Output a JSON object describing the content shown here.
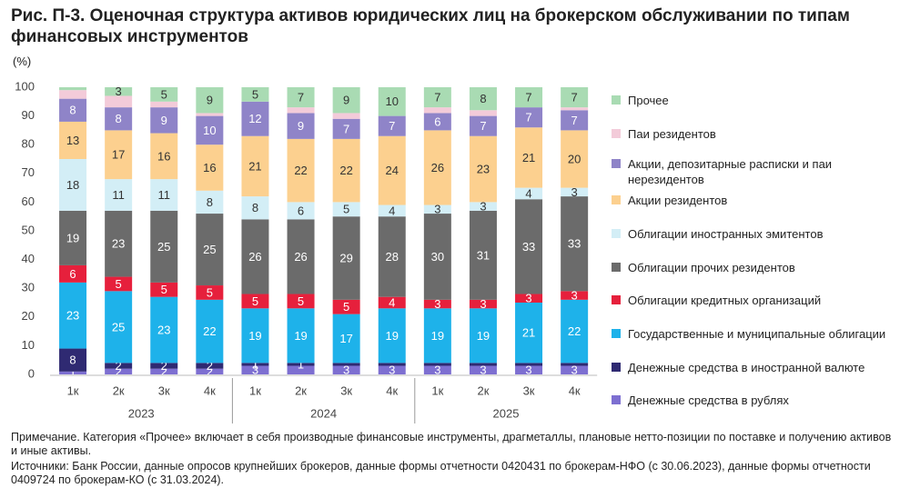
{
  "chart_data": {
    "type": "stacked_bar",
    "title": "Рис. П-3. Оценочная структура активов юридических лиц на брокерском обслуживании по типам финансовых инструментов",
    "y_label": "(%)",
    "categories": [
      "1к",
      "2к",
      "3к",
      "4к",
      "1к",
      "2к",
      "3к",
      "4к",
      "1к",
      "2к",
      "3к",
      "4к"
    ],
    "group_labels": [
      "2023",
      "2024",
      "2025"
    ],
    "ylim": [
      0,
      100
    ],
    "yticks": [
      0,
      10,
      20,
      30,
      40,
      50,
      60,
      70,
      80,
      90,
      100
    ],
    "series": [
      {
        "name": "Денежные средства в рублях",
        "color": "#7d6fd1",
        "values": [
          1,
          2,
          2,
          2,
          3,
          3,
          3,
          3,
          3,
          3,
          3,
          3
        ],
        "value_labels": [
          "1",
          "2",
          "2",
          "2",
          "3",
          null,
          "3",
          "3",
          "3",
          "3",
          "3",
          "3"
        ]
      },
      {
        "name": "Денежные средства в иностранной валюте",
        "color": "#2f2a72",
        "values": [
          8,
          2,
          2,
          2,
          1,
          1,
          1,
          1,
          1,
          1,
          1,
          1
        ],
        "value_labels": [
          "8",
          "2",
          "2",
          "2",
          "1",
          "1",
          null,
          null,
          null,
          null,
          null,
          null
        ]
      },
      {
        "name": "Государственные и муниципальные облигации",
        "color": "#1eb2ea",
        "values": [
          23,
          25,
          23,
          22,
          19,
          19,
          17,
          19,
          19,
          19,
          21,
          22
        ],
        "value_labels": [
          "23",
          "25",
          "23",
          "22",
          "19",
          "19",
          "17",
          "19",
          "19",
          "19",
          "21",
          "22"
        ]
      },
      {
        "name": "Облигации кредитных организаций",
        "color": "#e6203c",
        "values": [
          6,
          5,
          5,
          5,
          5,
          5,
          5,
          4,
          3,
          3,
          3,
          3
        ],
        "value_labels": [
          "6",
          "5",
          "5",
          "5",
          "5",
          "5",
          "5",
          "4",
          "3",
          "3",
          "3",
          "3"
        ]
      },
      {
        "name": "Облигации прочих резидентов",
        "color": "#6b6b6b",
        "values": [
          19,
          23,
          25,
          25,
          26,
          26,
          29,
          28,
          30,
          31,
          33,
          33
        ],
        "value_labels": [
          "19",
          "23",
          "25",
          "25",
          "26",
          "26",
          "29",
          "28",
          "30",
          "31",
          "33",
          "33"
        ]
      },
      {
        "name": "Облигации иностранных эмитентов",
        "color": "#d3eef6",
        "values": [
          18,
          11,
          11,
          8,
          8,
          6,
          5,
          4,
          3,
          3,
          4,
          3
        ],
        "value_labels": [
          "18",
          "11",
          "11",
          "8",
          "8",
          "6",
          "5",
          "4",
          "3",
          "3",
          "4",
          "3"
        ]
      },
      {
        "name": "Акции резидентов",
        "color": "#fcd08f",
        "values": [
          13,
          17,
          16,
          16,
          21,
          22,
          22,
          24,
          26,
          23,
          21,
          20
        ],
        "value_labels": [
          "13",
          "17",
          "16",
          "16",
          "21",
          "22",
          "22",
          "24",
          "26",
          "23",
          "21",
          "20"
        ]
      },
      {
        "name": "Акции, депозитарные расписки и паи нерезидентов",
        "color": "#8f84c8",
        "values": [
          8,
          8,
          9,
          10,
          12,
          9,
          7,
          7,
          6,
          7,
          7,
          7
        ],
        "value_labels": [
          "8",
          "8",
          "9",
          "10",
          "12",
          "9",
          "7",
          "7",
          "6",
          "7",
          "7",
          "7"
        ]
      },
      {
        "name": "Паи резидентов",
        "color": "#f3cbd9",
        "values": [
          3,
          4,
          2,
          1,
          0,
          2,
          2,
          0,
          2,
          2,
          0,
          1
        ],
        "value_labels": [
          null,
          null,
          null,
          null,
          null,
          null,
          null,
          null,
          null,
          null,
          null,
          null
        ]
      },
      {
        "name": "Прочее",
        "color": "#a9dbb3",
        "values": [
          1,
          3,
          5,
          9,
          5,
          7,
          9,
          10,
          7,
          8,
          7,
          7
        ],
        "value_labels": [
          null,
          "3",
          "5",
          "9",
          "5",
          "7",
          "9",
          "10",
          "7",
          "8",
          "7",
          "7"
        ]
      }
    ],
    "note": "Примечание. Категория «Прочее» включает в себя производные финансовые инструменты, драгметаллы, плановые нетто-позиции по поставке и получению активов и иные активы.",
    "source": "Источники: Банк России, данные опросов крупнейших брокеров, данные формы отчетности 0420431 по брокерам-НФО (с 30.06.2023), данные формы отчетности 0409724 по брокерам-КО (с 31.03.2024)."
  }
}
